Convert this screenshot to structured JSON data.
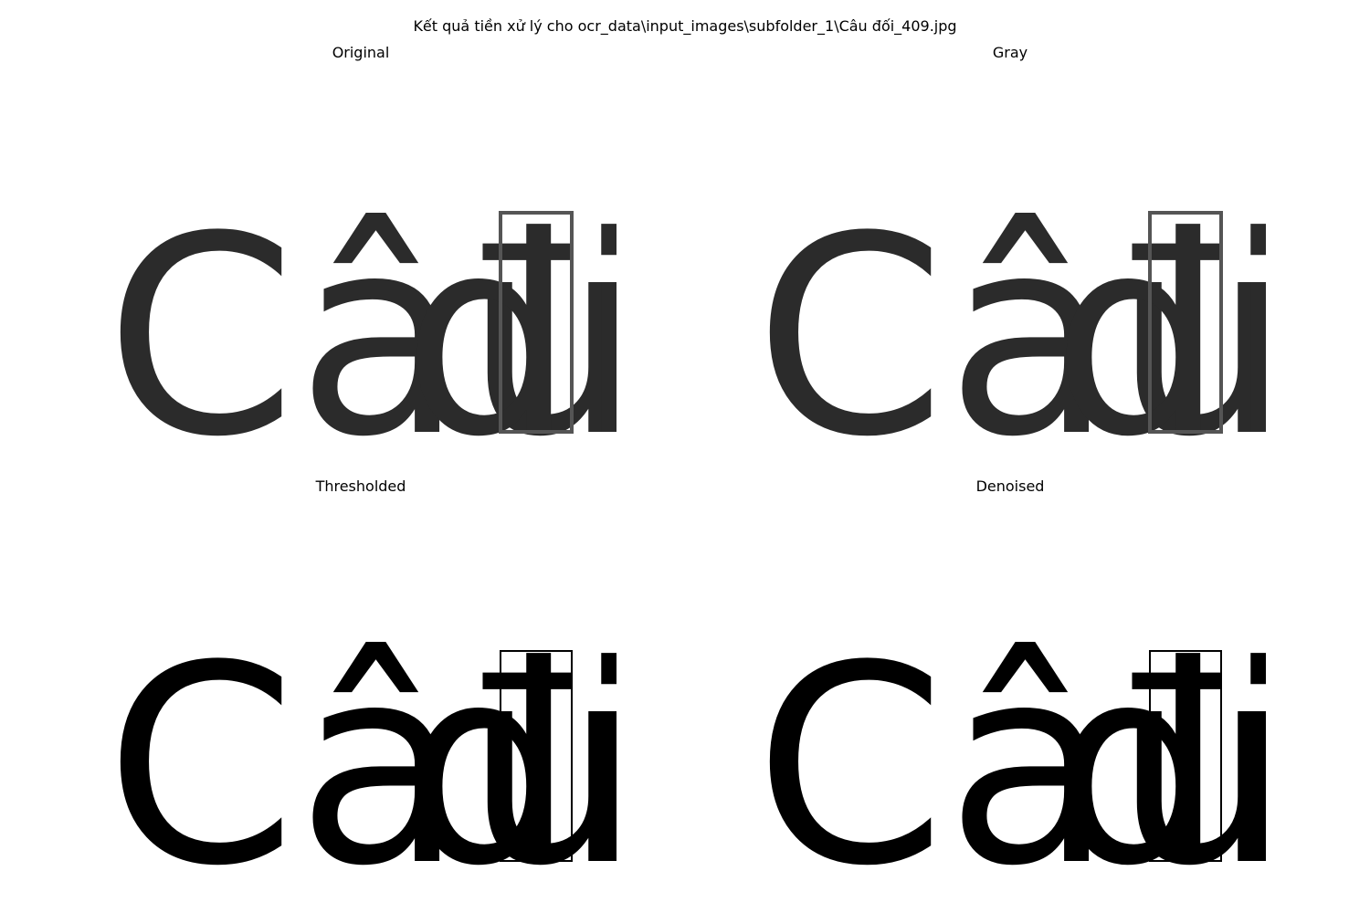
{
  "figure": {
    "suptitle": "Kết quả tiền xử lý cho ocr_data\\input_images\\subfolder_1\\Câu đối_409.jpg"
  },
  "panels": [
    {
      "title": "Original",
      "style": "soft"
    },
    {
      "title": "Gray",
      "style": "soft"
    },
    {
      "title": "Thresholded",
      "style": "binary"
    },
    {
      "title": "Denoised",
      "style": "binary"
    }
  ],
  "image_text": {
    "word1": "Câu",
    "word2": "đ",
    "word3": "i"
  },
  "colors": {
    "ink": "#000000",
    "soft_ink": "#2b2b2b",
    "background": "#ffffff"
  }
}
